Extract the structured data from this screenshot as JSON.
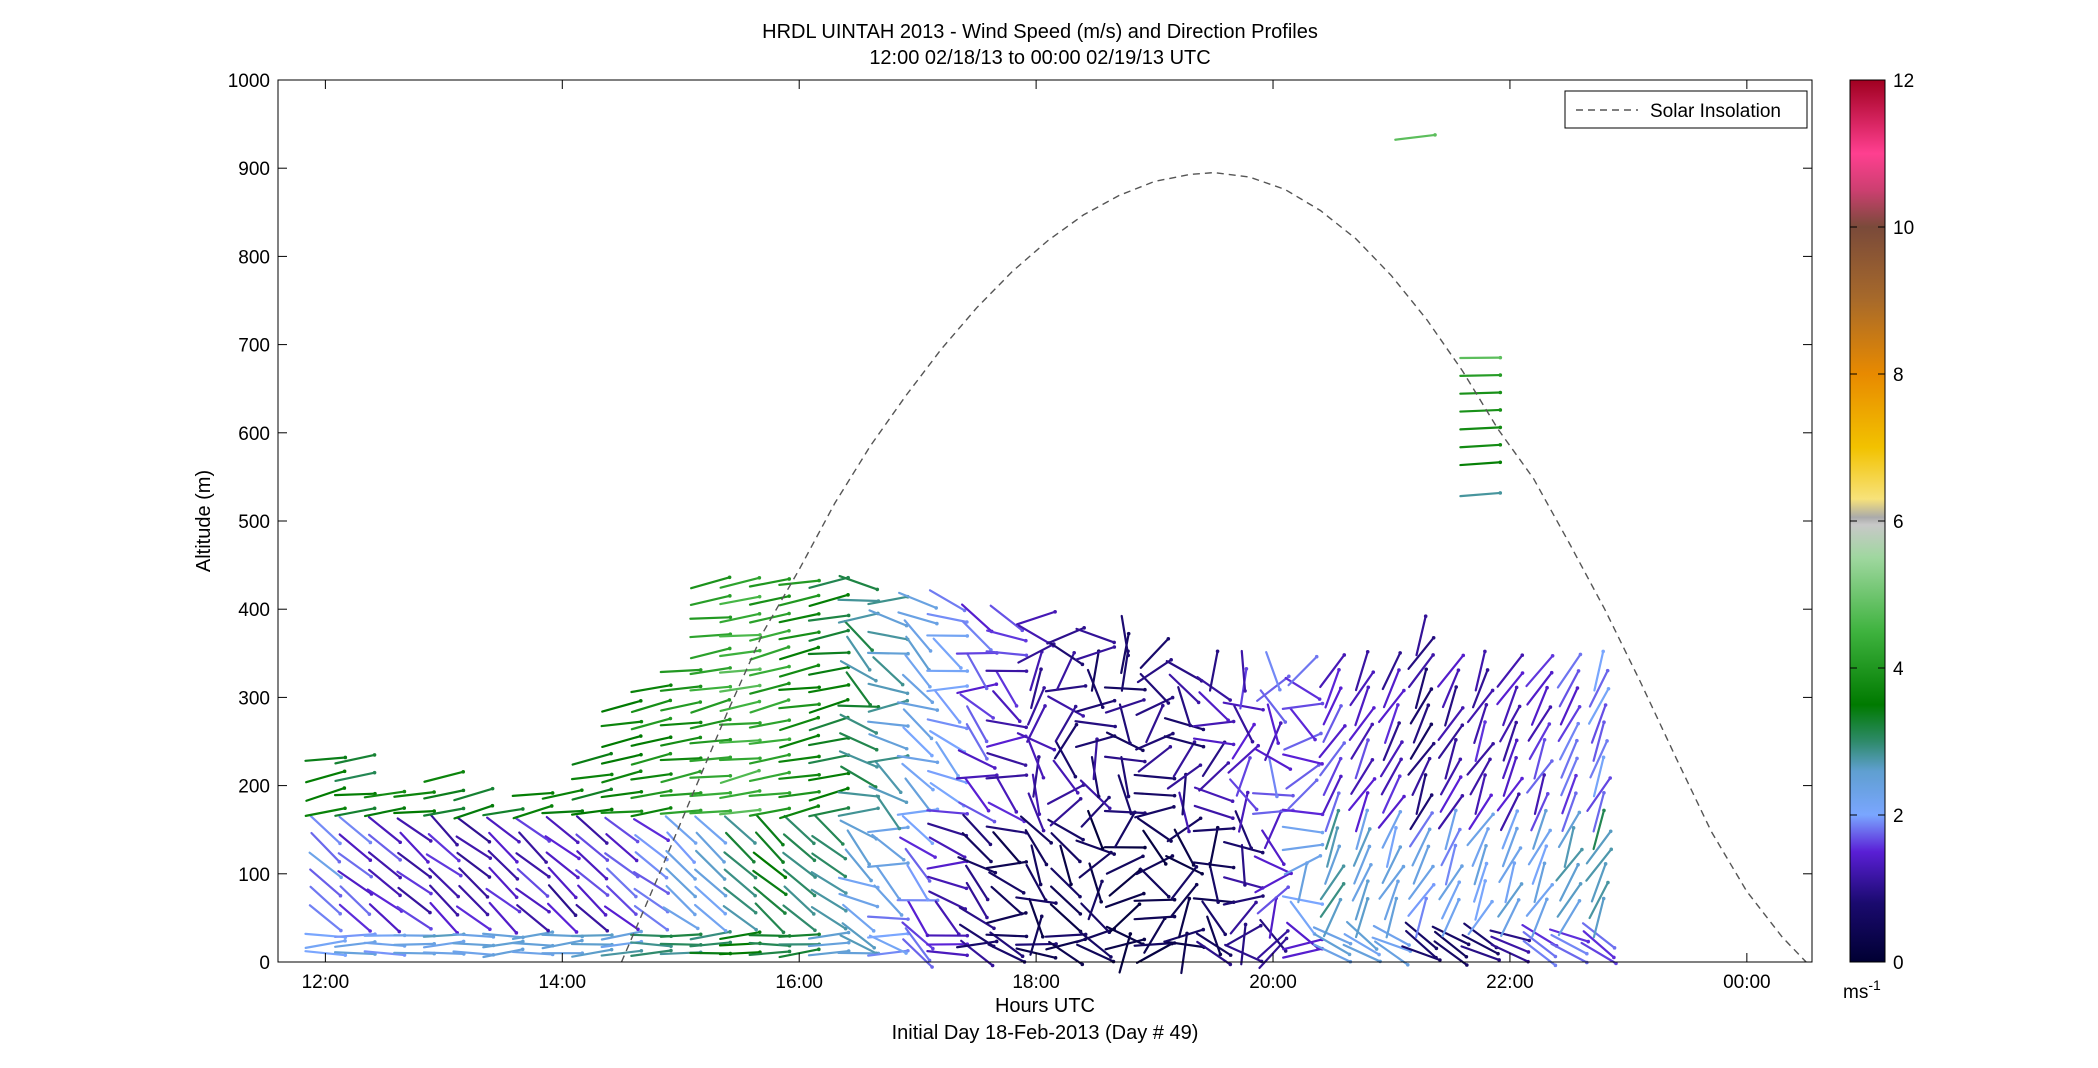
{
  "chart_data": {
    "type": "wind-profile-vector-plot",
    "title": "HRDL UINTAH 2013 - Wind Speed (m/s) and Direction Profiles",
    "subtitle": "12:00 02/18/13 to 00:00 02/19/13  UTC",
    "xlabel": "Hours UTC",
    "xlabel2": "Initial Day 18-Feb-2013 (Day # 49)",
    "ylabel": "Altitude (m)",
    "x_unit": "hours UTC",
    "xlim": [
      11.6,
      24.55
    ],
    "ylim": [
      0,
      1000
    ],
    "x_ticks": [
      {
        "value": 12,
        "label": "12:00"
      },
      {
        "value": 14,
        "label": "14:00"
      },
      {
        "value": 16,
        "label": "16:00"
      },
      {
        "value": 18,
        "label": "18:00"
      },
      {
        "value": 20,
        "label": "20:00"
      },
      {
        "value": 22,
        "label": "22:00"
      },
      {
        "value": 24,
        "label": "00:00"
      }
    ],
    "y_ticks": [
      0,
      100,
      200,
      300,
      400,
      500,
      600,
      700,
      800,
      900,
      1000
    ],
    "legend": {
      "label": "Solar Insolation",
      "placement": "top-right",
      "style": "dashed"
    },
    "solar_insolation": {
      "x": [
        14.5,
        14.8,
        15.1,
        15.4,
        15.7,
        16.0,
        16.3,
        16.6,
        16.9,
        17.2,
        17.5,
        17.8,
        18.1,
        18.4,
        18.7,
        19.0,
        19.3,
        19.5,
        19.8,
        20.1,
        20.4,
        20.7,
        21.0,
        21.3,
        21.6,
        21.9,
        22.2,
        22.5,
        22.8,
        23.1,
        23.4,
        23.7,
        24.0,
        24.3,
        24.5
      ],
      "y": [
        0,
        94,
        190,
        285,
        375,
        445,
        520,
        585,
        642,
        695,
        742,
        783,
        818,
        847,
        869,
        885,
        893,
        895,
        890,
        876,
        852,
        820,
        778,
        728,
        670,
        604,
        548,
        475,
        400,
        318,
        232,
        148,
        80,
        28,
        0
      ]
    },
    "colorbar": {
      "range": [
        0,
        12
      ],
      "ticks": [
        0,
        2,
        4,
        6,
        8,
        10,
        12
      ],
      "unit_label": "ms",
      "unit_superscript": "-1",
      "stops": [
        {
          "v": 0,
          "color": "#000033"
        },
        {
          "v": 0.8,
          "color": "#1a0a6e"
        },
        {
          "v": 1.5,
          "color": "#5a1fd6"
        },
        {
          "v": 2.0,
          "color": "#7aa6ff"
        },
        {
          "v": 2.6,
          "color": "#5f9fd0"
        },
        {
          "v": 3.0,
          "color": "#2e8a6a"
        },
        {
          "v": 3.5,
          "color": "#007a00"
        },
        {
          "v": 4.5,
          "color": "#3fb33f"
        },
        {
          "v": 5.5,
          "color": "#9fd79f"
        },
        {
          "v": 5.95,
          "color": "#c8c8c8"
        },
        {
          "v": 6.05,
          "color": "#aaaaaa"
        },
        {
          "v": 6.3,
          "color": "#f7e27a"
        },
        {
          "v": 7.0,
          "color": "#f2c200"
        },
        {
          "v": 8.0,
          "color": "#e88a00"
        },
        {
          "v": 9.0,
          "color": "#a86a2a"
        },
        {
          "v": 10.0,
          "color": "#7a4a3a"
        },
        {
          "v": 10.5,
          "color": "#cc3f70"
        },
        {
          "v": 11.0,
          "color": "#ff3f90"
        },
        {
          "v": 12.0,
          "color": "#a00020"
        }
      ]
    },
    "wind_field": {
      "times": [
        12.0,
        12.25,
        12.5,
        12.75,
        13.0,
        13.25,
        13.5,
        13.75,
        14.0,
        14.25,
        14.5,
        14.75,
        15.0,
        15.25,
        15.5,
        15.75,
        16.0,
        16.25,
        16.5,
        16.75,
        17.0,
        17.25,
        17.5,
        17.75,
        18.0,
        18.25,
        18.5,
        18.75,
        19.0,
        19.25,
        19.5,
        19.75,
        20.0,
        20.25,
        20.5,
        20.75,
        21.0,
        21.25,
        21.5,
        21.75,
        22.0,
        22.25,
        22.5,
        22.75
      ],
      "altitudes": [
        10,
        20,
        30,
        50,
        70,
        90,
        110,
        130,
        150,
        170,
        190,
        210,
        230,
        250,
        270,
        290,
        310,
        330,
        350,
        370,
        390,
        410,
        430
      ],
      "top_m": [
        230,
        240,
        200,
        205,
        210,
        190,
        170,
        200,
        205,
        230,
        300,
        310,
        330,
        430,
        430,
        440,
        445,
        440,
        430,
        425,
        420,
        415,
        400,
        400,
        390,
        385,
        380,
        380,
        350,
        340,
        340,
        340,
        340,
        330,
        330,
        330,
        330,
        380,
        330,
        330,
        330,
        330,
        330,
        330
      ],
      "speed_m_s": {
        "surface_layer_0_40m": [
          2.3,
          2.2,
          2.2,
          2.4,
          2.4,
          2.3,
          2.4,
          2.5,
          2.5,
          2.6,
          2.5,
          2.8,
          3.0,
          3.1,
          3.3,
          3.2,
          3.0,
          2.6,
          2.4,
          2.0,
          1.6,
          1.3,
          1.0,
          0.8,
          0.6,
          0.5,
          0.5,
          0.5,
          0.4,
          0.5,
          0.7,
          0.9,
          1.2,
          1.5,
          2.5,
          2.4,
          2.1,
          0.5,
          0.7,
          0.8,
          1.0,
          1.6,
          1.8,
          1.8
        ],
        "mid_layer_50_150m": [
          2.0,
          1.6,
          1.5,
          1.4,
          1.4,
          1.3,
          1.3,
          1.4,
          1.3,
          1.4,
          1.6,
          1.7,
          2.2,
          2.4,
          3.0,
          3.3,
          3.0,
          2.8,
          2.4,
          2.1,
          1.7,
          1.2,
          0.8,
          0.6,
          0.5,
          0.5,
          0.4,
          0.4,
          0.3,
          0.4,
          0.6,
          0.9,
          1.4,
          2.3,
          2.7,
          2.5,
          2.2,
          2.1,
          2.1,
          2.2,
          2.4,
          2.2,
          2.6,
          2.9
        ],
        "upper_layer_above_150m": [
          3.4,
          3.4,
          3.5,
          3.5,
          3.5,
          3.4,
          3.4,
          3.6,
          3.5,
          3.6,
          3.7,
          3.8,
          4.0,
          4.2,
          4.5,
          4.1,
          3.8,
          3.4,
          3.0,
          2.7,
          2.3,
          1.9,
          1.6,
          1.4,
          1.2,
          1.0,
          0.9,
          0.8,
          0.9,
          1.0,
          1.2,
          1.4,
          1.6,
          1.6,
          1.5,
          1.4,
          1.3,
          0.9,
          1.2,
          1.3,
          1.4,
          1.5,
          1.6,
          1.8
        ]
      },
      "isolated_profile_2140": {
        "time": 21.75,
        "altitudes": [
          530,
          565,
          585,
          605,
          625,
          645,
          665,
          685
        ],
        "speed_m_s": [
          2.8,
          3.6,
          3.8,
          3.8,
          3.9,
          3.9,
          4.1,
          4.8
        ]
      },
      "isolated_vector_2130": {
        "time": 21.2,
        "altitude": 935,
        "speed_m_s": 4.8
      }
    }
  }
}
